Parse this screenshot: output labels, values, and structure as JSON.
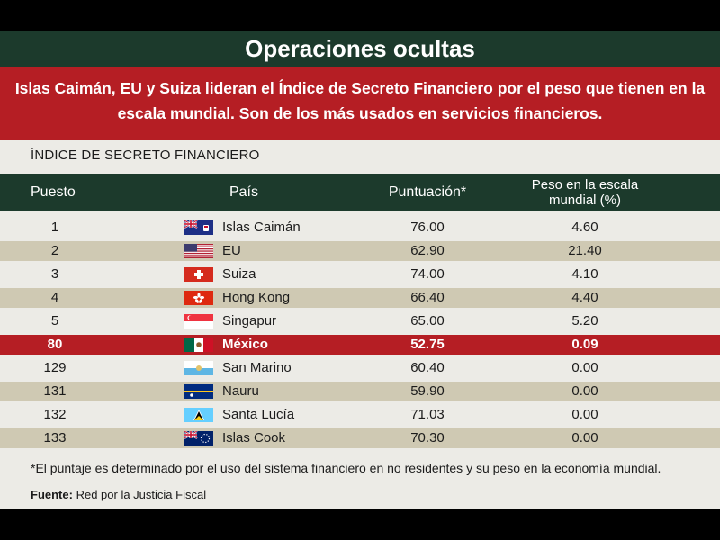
{
  "title": "Operaciones ocultas",
  "subtitle_lines": [
    "Islas Caimán, EU y Suiza lideran el Índice de Secreto Financiero por el peso que tienen en la",
    "escala mundial. Son de los más usados en servicios financieros."
  ],
  "index_label": "ÍNDICE DE SECRETO FINANCIERO",
  "colors": {
    "dark_green": "#1c3a2c",
    "red": "#b51e24",
    "stripe": "#cfc9b3",
    "background": "#ecebe6"
  },
  "chart_data": {
    "type": "table",
    "columns": [
      "Puesto",
      "País",
      "Puntuación*",
      "Peso en la escala mundial (%)"
    ],
    "column_header_lines": {
      "peso": [
        "Peso en la escala",
        "mundial (%)"
      ]
    },
    "rows": [
      {
        "puesto": "1",
        "pais": "Islas Caimán",
        "flag": "cayman-islands-flag",
        "puntuacion": "76.00",
        "peso": "4.60",
        "highlight": false
      },
      {
        "puesto": "2",
        "pais": "EU",
        "flag": "usa-flag",
        "puntuacion": "62.90",
        "peso": "21.40",
        "highlight": false
      },
      {
        "puesto": "3",
        "pais": "Suiza",
        "flag": "switzerland-flag",
        "puntuacion": "74.00",
        "peso": "4.10",
        "highlight": false
      },
      {
        "puesto": "4",
        "pais": "Hong Kong",
        "flag": "hong-kong-flag",
        "puntuacion": "66.40",
        "peso": "4.40",
        "highlight": false
      },
      {
        "puesto": "5",
        "pais": "Singapur",
        "flag": "singapore-flag",
        "puntuacion": "65.00",
        "peso": "5.20",
        "highlight": false
      },
      {
        "puesto": "80",
        "pais": "México",
        "flag": "mexico-flag",
        "puntuacion": "52.75",
        "peso": "0.09",
        "highlight": true
      },
      {
        "puesto": "129",
        "pais": "San Marino",
        "flag": "san-marino-flag",
        "puntuacion": "60.40",
        "peso": "0.00",
        "highlight": false
      },
      {
        "puesto": "131",
        "pais": "Nauru",
        "flag": "nauru-flag",
        "puntuacion": "59.90",
        "peso": "0.00",
        "highlight": false
      },
      {
        "puesto": "132",
        "pais": "Santa Lucía",
        "flag": "saint-lucia-flag",
        "puntuacion": "71.03",
        "peso": "0.00",
        "highlight": false
      },
      {
        "puesto": "133",
        "pais": "Islas Cook",
        "flag": "cook-islands-flag",
        "puntuacion": "70.30",
        "peso": "0.00",
        "highlight": false
      }
    ]
  },
  "footnote": "*El puntaje es determinado por el uso del sistema financiero en no residentes y su peso en la economía mundial.",
  "source_label": "Fuente:",
  "source_text": "Red por la Justicia Fiscal"
}
